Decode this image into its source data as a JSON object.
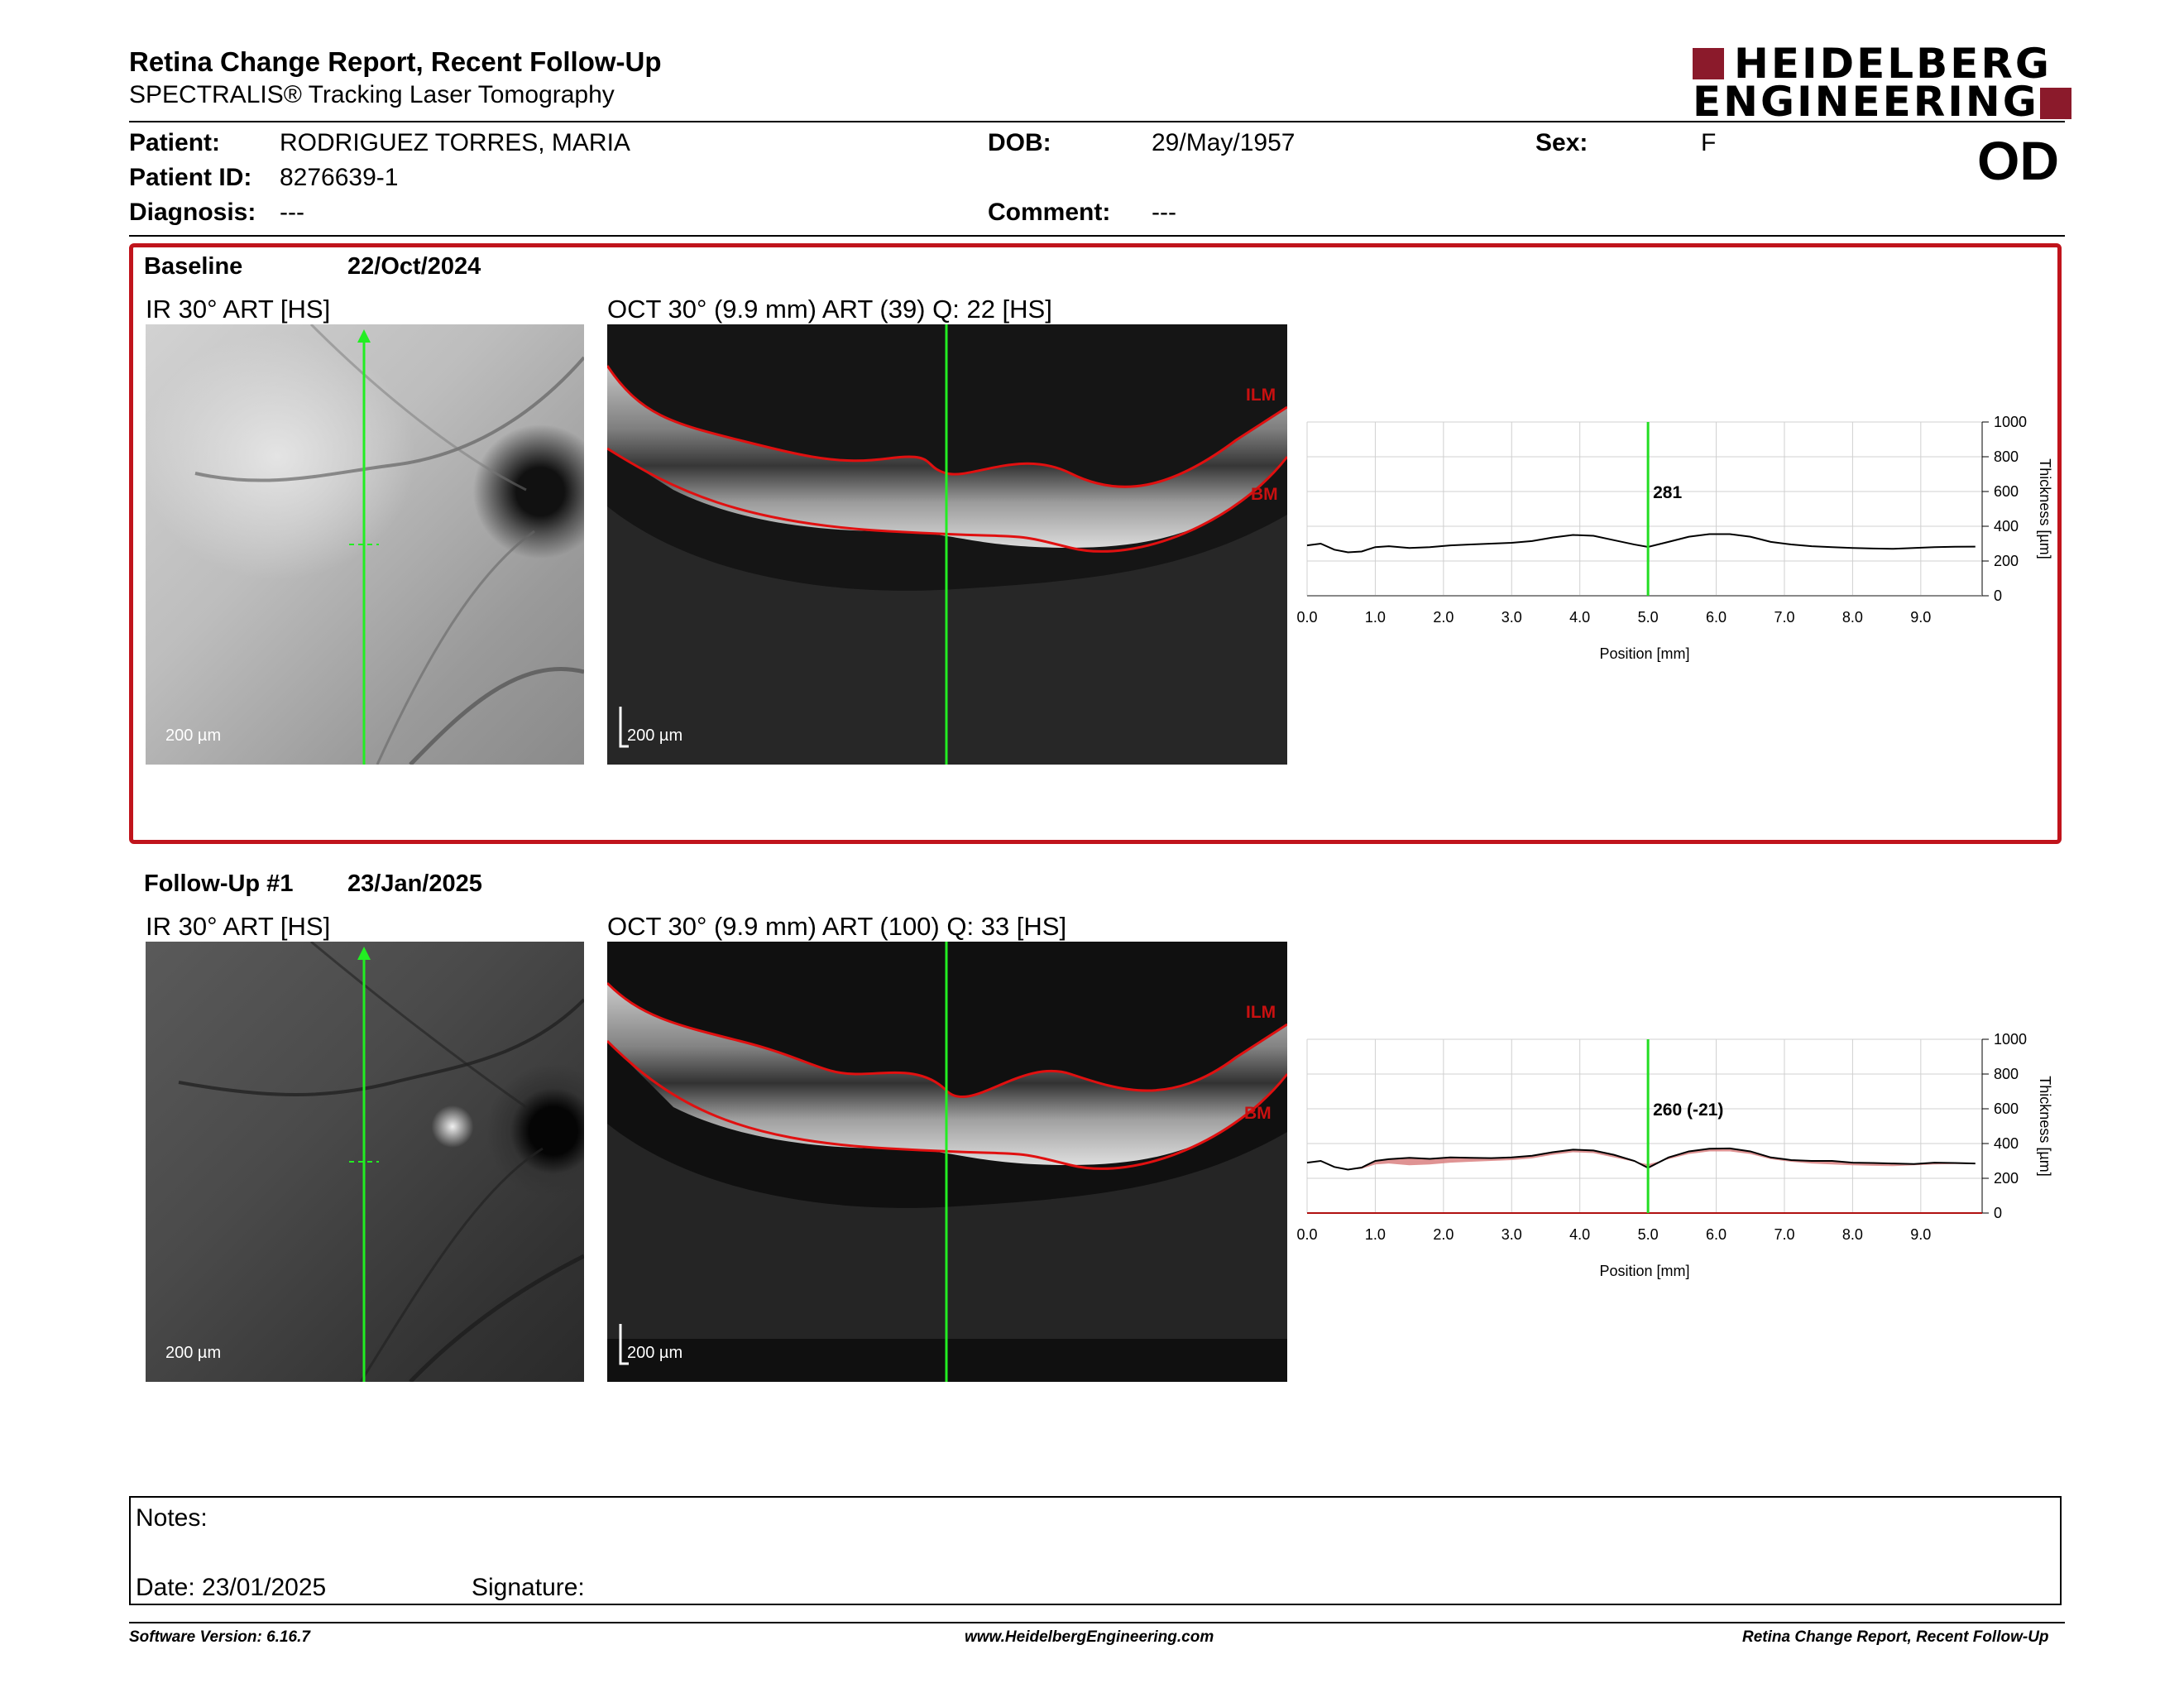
{
  "header": {
    "title": "Retina Change Report, Recent Follow-Up",
    "subtitle": "SPECTRALIS® Tracking Laser Tomography",
    "logo_line1": "HEIDELBERG",
    "logo_line2": "ENGINEERING",
    "eye": "OD"
  },
  "patient": {
    "patient_label": "Patient:",
    "patient_value": "RODRIGUEZ TORRES, MARIA",
    "id_label": "Patient ID:",
    "id_value": "8276639-1",
    "diagnosis_label": "Diagnosis:",
    "diagnosis_value": "---",
    "dob_label": "DOB:",
    "dob_value": "29/May/1957",
    "comment_label": "Comment:",
    "comment_value": "---",
    "sex_label": "Sex:",
    "sex_value": "F"
  },
  "baseline": {
    "label": "Baseline",
    "date": "22/Oct/2024",
    "ir_caption": "IR 30° ART [HS]",
    "oct_caption": "OCT 30° (9.9 mm) ART (39) Q: 22 [HS]",
    "ir_scale": "200 µm",
    "oct_scale": "200 µm",
    "ilm": "ILM",
    "bm": "BM"
  },
  "followup": {
    "label": "Follow-Up #1",
    "date": "23/Jan/2025",
    "ir_caption": "IR 30° ART [HS]",
    "oct_caption": "OCT 30° (9.9 mm) ART (100) Q: 33 [HS]",
    "ir_scale": "200 µm",
    "oct_scale": "200 µm",
    "ilm": "ILM",
    "bm": "BM"
  },
  "chart_data": [
    {
      "type": "line",
      "xlabel": "Position [mm]",
      "ylabel": "Thickness [µm]",
      "xlim": [
        0,
        9.9
      ],
      "ylim": [
        0,
        1000
      ],
      "x_ticks": [
        "0.0",
        "1.0",
        "2.0",
        "3.0",
        "4.0",
        "5.0",
        "6.0",
        "7.0",
        "8.0",
        "9.0"
      ],
      "y_ticks": [
        "0",
        "200",
        "400",
        "600",
        "800",
        "1000"
      ],
      "grid": true,
      "cursor_x": 5.0,
      "cursor_label": "281",
      "series": [
        {
          "x": [
            0.0,
            0.2,
            0.4,
            0.6,
            0.8,
            1.0,
            1.2,
            1.5,
            1.8,
            2.1,
            2.4,
            2.7,
            3.0,
            3.3,
            3.6,
            3.9,
            4.2,
            4.5,
            4.8,
            5.0,
            5.3,
            5.6,
            5.9,
            6.2,
            6.5,
            6.8,
            7.1,
            7.4,
            7.7,
            8.0,
            8.3,
            8.6,
            8.9,
            9.2,
            9.5,
            9.8
          ],
          "values": [
            290,
            300,
            265,
            250,
            255,
            280,
            285,
            275,
            280,
            290,
            295,
            300,
            305,
            315,
            335,
            350,
            345,
            320,
            295,
            281,
            310,
            340,
            355,
            355,
            340,
            310,
            295,
            285,
            280,
            275,
            272,
            270,
            275,
            280,
            282,
            283
          ]
        }
      ]
    },
    {
      "type": "line",
      "xlabel": "Position [mm]",
      "ylabel": "Thickness [µm]",
      "xlim": [
        0,
        9.9
      ],
      "ylim": [
        0,
        1000
      ],
      "x_ticks": [
        "0.0",
        "1.0",
        "2.0",
        "3.0",
        "4.0",
        "5.0",
        "6.0",
        "7.0",
        "8.0",
        "9.0"
      ],
      "y_ticks": [
        "0",
        "200",
        "400",
        "600",
        "800",
        "1000"
      ],
      "grid": true,
      "cursor_x": 5.0,
      "cursor_label": "260 (-21)",
      "series": [
        {
          "x": [
            0.0,
            0.2,
            0.4,
            0.6,
            0.8,
            1.0,
            1.2,
            1.5,
            1.8,
            2.1,
            2.4,
            2.7,
            3.0,
            3.3,
            3.6,
            3.9,
            4.2,
            4.5,
            4.8,
            5.0,
            5.3,
            5.6,
            5.9,
            6.2,
            6.5,
            6.8,
            7.1,
            7.4,
            7.7,
            8.0,
            8.3,
            8.6,
            8.9,
            9.2,
            9.5,
            9.8
          ],
          "values": [
            290,
            300,
            265,
            250,
            262,
            300,
            310,
            318,
            312,
            320,
            318,
            316,
            320,
            330,
            350,
            365,
            360,
            335,
            300,
            260,
            320,
            355,
            370,
            372,
            355,
            320,
            305,
            300,
            300,
            290,
            288,
            285,
            282,
            290,
            288,
            285
          ]
        }
      ]
    }
  ],
  "notes": {
    "notes_label": "Notes:",
    "date_label": "Date: 23/01/2025",
    "signature_label": "Signature:"
  },
  "footer": {
    "left": "Software Version: 6.16.7",
    "center": "www.HeidelbergEngineering.com",
    "right": "Retina Change Report, Recent Follow-Up"
  }
}
